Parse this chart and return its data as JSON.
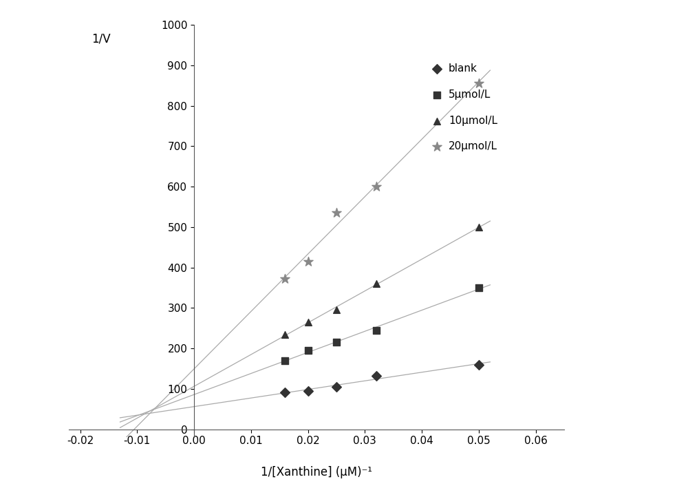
{
  "blank": {
    "x": [
      0.016,
      0.02,
      0.025,
      0.032,
      0.05
    ],
    "y": [
      92,
      95,
      105,
      132,
      160
    ],
    "marker": "D",
    "label": "blank",
    "markersize": 7,
    "marker_color": "#333333"
  },
  "s5": {
    "x": [
      0.016,
      0.02,
      0.025,
      0.032,
      0.05
    ],
    "y": [
      170,
      195,
      215,
      245,
      350
    ],
    "marker": "s",
    "label": "5μmol/L",
    "markersize": 7,
    "marker_color": "#333333"
  },
  "s10": {
    "x": [
      0.016,
      0.02,
      0.025,
      0.032,
      0.05
    ],
    "y": [
      235,
      265,
      295,
      360,
      500
    ],
    "marker": "^",
    "label": "10μmol/L",
    "markersize": 7,
    "marker_color": "#333333"
  },
  "s20": {
    "x": [
      0.016,
      0.02,
      0.025,
      0.032,
      0.05
    ],
    "y": [
      372,
      415,
      535,
      600,
      855
    ],
    "marker": "*",
    "label": "20μmol/L",
    "markersize": 10,
    "marker_color": "#888888"
  },
  "xlim": [
    -0.022,
    0.065
  ],
  "ylim": [
    -20,
    1000
  ],
  "xlabel": "1/[Xanthine] (μM)⁻¹",
  "ylabel": "1/V",
  "xticks": [
    -0.02,
    -0.01,
    0.0,
    0.01,
    0.02,
    0.03,
    0.04,
    0.05,
    0.06
  ],
  "yticks": [
    0,
    100,
    200,
    300,
    400,
    500,
    600,
    700,
    800,
    900,
    1000
  ],
  "line_color": "#aaaaaa",
  "bg_color": "#ffffff",
  "line_xstart": -0.013,
  "line_xend": 0.052
}
